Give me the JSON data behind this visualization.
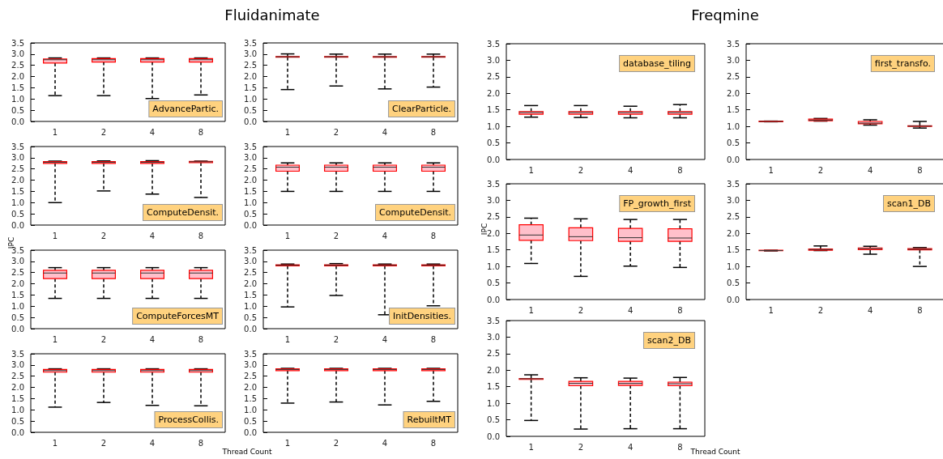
{
  "chart_data": [
    {
      "type": "box",
      "annotations": [
        "AdvancePartic."
      ],
      "categories": [
        "1",
        "2",
        "4",
        "8"
      ],
      "ylim": [
        0,
        3.5
      ],
      "yticks": [
        {
          "value": 0,
          "label": "0.0"
        },
        {
          "value": 0.5,
          "label": "0.5"
        },
        {
          "value": 1,
          "label": "1.0"
        },
        {
          "value": 1.5,
          "label": "1.5"
        },
        {
          "value": 2,
          "label": "2.0"
        },
        {
          "value": 2.5,
          "label": "2.5"
        },
        {
          "value": 3,
          "label": "3.0"
        },
        {
          "value": 3.5,
          "label": "3.5"
        }
      ],
      "series": [
        {
          "color": "#ffc0cb",
          "boxes": [
            {
              "low": 1.15,
              "q1": 2.6,
              "median": 2.75,
              "q3": 2.78,
              "high": 2.83
            },
            {
              "low": 1.15,
              "q1": 2.65,
              "median": 2.75,
              "q3": 2.8,
              "high": 2.83
            },
            {
              "low": 1.02,
              "q1": 2.65,
              "median": 2.75,
              "q3": 2.8,
              "high": 2.83
            },
            {
              "low": 1.18,
              "q1": 2.65,
              "median": 2.75,
              "q3": 2.8,
              "high": 2.83
            }
          ]
        }
      ]
    },
    {
      "type": "box",
      "title": "Fluidanimate",
      "annotations": [
        "ClearParticle."
      ],
      "categories": [
        "1",
        "2",
        "4",
        "8"
      ],
      "ylim": [
        0,
        3.5
      ],
      "yticks": [
        {
          "value": 0,
          "label": "0.0"
        },
        {
          "value": 0.5,
          "label": "0.5"
        },
        {
          "value": 1,
          "label": "1.0"
        },
        {
          "value": 1.5,
          "label": "1.5"
        },
        {
          "value": 2,
          "label": "2.0"
        },
        {
          "value": 2.5,
          "label": "2.5"
        },
        {
          "value": 3,
          "label": "3.0"
        },
        {
          "value": 3.5,
          "label": "3.5"
        }
      ],
      "series": [
        {
          "color": "#ffc0cb",
          "boxes": [
            {
              "low": 1.42,
              "q1": 2.86,
              "median": 2.88,
              "q3": 2.89,
              "high": 3.01
            },
            {
              "low": 1.58,
              "q1": 2.86,
              "median": 2.88,
              "q3": 2.89,
              "high": 3.0
            },
            {
              "low": 1.45,
              "q1": 2.86,
              "median": 2.88,
              "q3": 2.89,
              "high": 3.0
            },
            {
              "low": 1.53,
              "q1": 2.86,
              "median": 2.88,
              "q3": 2.89,
              "high": 3.0
            }
          ]
        }
      ]
    },
    {
      "type": "box",
      "ylabel": "IPC",
      "annotations": [
        "ComputeDensit."
      ],
      "categories": [
        "1",
        "2",
        "4",
        "8"
      ],
      "ylim": [
        0,
        3.5
      ],
      "yticks": [
        {
          "value": 0,
          "label": "0.0"
        },
        {
          "value": 0.5,
          "label": "0.5"
        },
        {
          "value": 1,
          "label": "1.0"
        },
        {
          "value": 1.5,
          "label": "1.5"
        },
        {
          "value": 2,
          "label": "2.0"
        },
        {
          "value": 2.5,
          "label": "2.5"
        },
        {
          "value": 3,
          "label": "3.0"
        },
        {
          "value": 3.5,
          "label": "3.5"
        }
      ],
      "series": [
        {
          "color": "#ffc0cb",
          "boxes": [
            {
              "low": 1.0,
              "q1": 2.75,
              "median": 2.8,
              "q3": 2.83,
              "high": 2.85
            },
            {
              "low": 1.52,
              "q1": 2.75,
              "median": 2.8,
              "q3": 2.83,
              "high": 2.86
            },
            {
              "low": 1.38,
              "q1": 2.75,
              "median": 2.8,
              "q3": 2.83,
              "high": 2.87
            },
            {
              "low": 1.23,
              "q1": 2.78,
              "median": 2.82,
              "q3": 2.84,
              "high": 2.85
            }
          ]
        }
      ]
    },
    {
      "type": "box",
      "annotations": [
        "ComputeDensit."
      ],
      "categories": [
        "1",
        "2",
        "4",
        "8"
      ],
      "ylim": [
        0,
        3.5
      ],
      "yticks": [
        {
          "value": 0,
          "label": "0.0"
        },
        {
          "value": 0.5,
          "label": "0.5"
        },
        {
          "value": 1,
          "label": "1.0"
        },
        {
          "value": 1.5,
          "label": "1.5"
        },
        {
          "value": 2,
          "label": "2.0"
        },
        {
          "value": 2.5,
          "label": "2.5"
        },
        {
          "value": 3,
          "label": "3.0"
        },
        {
          "value": 3.5,
          "label": "3.5"
        }
      ],
      "series": [
        {
          "color": "#ffc0cb",
          "boxes": [
            {
              "low": 1.5,
              "q1": 2.4,
              "median": 2.58,
              "q3": 2.67,
              "high": 2.77
            },
            {
              "low": 1.5,
              "q1": 2.4,
              "median": 2.58,
              "q3": 2.67,
              "high": 2.77
            },
            {
              "low": 1.5,
              "q1": 2.4,
              "median": 2.58,
              "q3": 2.67,
              "high": 2.77
            },
            {
              "low": 1.5,
              "q1": 2.4,
              "median": 2.58,
              "q3": 2.67,
              "high": 2.77
            }
          ]
        }
      ]
    },
    {
      "type": "box",
      "annotations": [
        "ComputeForcesMT"
      ],
      "categories": [
        "1",
        "2",
        "4",
        "8"
      ],
      "ylim": [
        0,
        3.5
      ],
      "yticks": [
        {
          "value": 0,
          "label": "0.0"
        },
        {
          "value": 0.5,
          "label": "0.5"
        },
        {
          "value": 1,
          "label": "1.0"
        },
        {
          "value": 1.5,
          "label": "1.5"
        },
        {
          "value": 2,
          "label": "2.0"
        },
        {
          "value": 2.5,
          "label": "2.5"
        },
        {
          "value": 3,
          "label": "3.0"
        },
        {
          "value": 3.5,
          "label": "3.5"
        }
      ],
      "series": [
        {
          "color": "#ffc0cb",
          "boxes": [
            {
              "low": 1.35,
              "q1": 2.23,
              "median": 2.48,
              "q3": 2.6,
              "high": 2.72
            },
            {
              "low": 1.35,
              "q1": 2.23,
              "median": 2.48,
              "q3": 2.6,
              "high": 2.72
            },
            {
              "low": 1.35,
              "q1": 2.23,
              "median": 2.48,
              "q3": 2.6,
              "high": 2.72
            },
            {
              "low": 1.35,
              "q1": 2.23,
              "median": 2.48,
              "q3": 2.6,
              "high": 2.72
            }
          ]
        }
      ]
    },
    {
      "type": "box",
      "annotations": [
        "InitDensities."
      ],
      "categories": [
        "1",
        "2",
        "4",
        "8"
      ],
      "ylim": [
        0,
        3.5
      ],
      "yticks": [
        {
          "value": 0,
          "label": "0.0"
        },
        {
          "value": 0.5,
          "label": "0.5"
        },
        {
          "value": 1,
          "label": "1.0"
        },
        {
          "value": 1.5,
          "label": "1.5"
        },
        {
          "value": 2,
          "label": "2.0"
        },
        {
          "value": 2.5,
          "label": "2.5"
        },
        {
          "value": 3,
          "label": "3.0"
        },
        {
          "value": 3.5,
          "label": "3.5"
        }
      ],
      "series": [
        {
          "color": "#ffc0cb",
          "boxes": [
            {
              "low": 0.97,
              "q1": 2.8,
              "median": 2.83,
              "q3": 2.85,
              "high": 2.88
            },
            {
              "low": 1.48,
              "q1": 2.8,
              "median": 2.83,
              "q3": 2.85,
              "high": 2.9
            },
            {
              "low": 0.62,
              "q1": 2.8,
              "median": 2.83,
              "q3": 2.85,
              "high": 2.88
            },
            {
              "low": 1.02,
              "q1": 2.8,
              "median": 2.83,
              "q3": 2.85,
              "high": 2.88
            }
          ]
        }
      ]
    },
    {
      "type": "box",
      "xlabel": "Thread Count",
      "annotations": [
        "ProcessCollis."
      ],
      "categories": [
        "1",
        "2",
        "4",
        "8"
      ],
      "ylim": [
        0,
        3.5
      ],
      "yticks": [
        {
          "value": 0,
          "label": "0.0"
        },
        {
          "value": 0.5,
          "label": "0.5"
        },
        {
          "value": 1,
          "label": "1.0"
        },
        {
          "value": 1.5,
          "label": "1.5"
        },
        {
          "value": 2,
          "label": "2.0"
        },
        {
          "value": 2.5,
          "label": "2.5"
        },
        {
          "value": 3,
          "label": "3.0"
        },
        {
          "value": 3.5,
          "label": "3.5"
        }
      ],
      "series": [
        {
          "color": "#ffc0cb",
          "boxes": [
            {
              "low": 1.12,
              "q1": 2.68,
              "median": 2.75,
              "q3": 2.8,
              "high": 2.83
            },
            {
              "low": 1.33,
              "q1": 2.68,
              "median": 2.75,
              "q3": 2.8,
              "high": 2.83
            },
            {
              "low": 1.2,
              "q1": 2.68,
              "median": 2.75,
              "q3": 2.8,
              "high": 2.83
            },
            {
              "low": 1.18,
              "q1": 2.68,
              "median": 2.75,
              "q3": 2.8,
              "high": 2.83
            }
          ]
        }
      ]
    },
    {
      "type": "box",
      "annotations": [
        "RebuiltMT"
      ],
      "categories": [
        "1",
        "2",
        "4",
        "8"
      ],
      "ylim": [
        0,
        3.5
      ],
      "yticks": [
        {
          "value": 0,
          "label": "0.0"
        },
        {
          "value": 0.5,
          "label": "0.5"
        },
        {
          "value": 1,
          "label": "1.0"
        },
        {
          "value": 1.5,
          "label": "1.5"
        },
        {
          "value": 2,
          "label": "2.0"
        },
        {
          "value": 2.5,
          "label": "2.5"
        },
        {
          "value": 3,
          "label": "3.0"
        },
        {
          "value": 3.5,
          "label": "3.5"
        }
      ],
      "series": [
        {
          "color": "#ffc0cb",
          "boxes": [
            {
              "low": 1.3,
              "q1": 2.75,
              "median": 2.8,
              "q3": 2.83,
              "high": 2.85
            },
            {
              "low": 1.35,
              "q1": 2.75,
              "median": 2.8,
              "q3": 2.83,
              "high": 2.85
            },
            {
              "low": 1.22,
              "q1": 2.75,
              "median": 2.8,
              "q3": 2.83,
              "high": 2.85
            },
            {
              "low": 1.38,
              "q1": 2.75,
              "median": 2.8,
              "q3": 2.83,
              "high": 2.85
            }
          ]
        }
      ]
    },
    {
      "type": "box",
      "title": "Freqmine",
      "annotations": [
        "database_tiling"
      ],
      "categories": [
        "1",
        "2",
        "4",
        "8"
      ],
      "ylim": [
        0,
        3.5
      ],
      "yticks": [
        {
          "value": 0,
          "label": "0.0"
        },
        {
          "value": 0.5,
          "label": "0.5"
        },
        {
          "value": 1,
          "label": "1.0"
        },
        {
          "value": 1.5,
          "label": "1.5"
        },
        {
          "value": 2,
          "label": "2.0"
        },
        {
          "value": 2.5,
          "label": "2.5"
        },
        {
          "value": 3,
          "label": "3.0"
        },
        {
          "value": 3.5,
          "label": "3.5"
        }
      ],
      "series": [
        {
          "color": "#ffc0cb",
          "boxes": [
            {
              "low": 1.28,
              "q1": 1.37,
              "median": 1.42,
              "q3": 1.45,
              "high": 1.63
            },
            {
              "low": 1.27,
              "q1": 1.37,
              "median": 1.42,
              "q3": 1.45,
              "high": 1.63
            },
            {
              "low": 1.26,
              "q1": 1.37,
              "median": 1.42,
              "q3": 1.45,
              "high": 1.61
            },
            {
              "low": 1.26,
              "q1": 1.37,
              "median": 1.42,
              "q3": 1.45,
              "high": 1.66
            }
          ]
        }
      ]
    },
    {
      "type": "box",
      "annotations": [
        "first_transfo."
      ],
      "categories": [
        "1",
        "2",
        "4",
        "8"
      ],
      "ylim": [
        0,
        3.5
      ],
      "yticks": [
        {
          "value": 0,
          "label": "0.0"
        },
        {
          "value": 0.5,
          "label": "0.5"
        },
        {
          "value": 1,
          "label": "1.0"
        },
        {
          "value": 1.5,
          "label": "1.5"
        },
        {
          "value": 2,
          "label": "2.0"
        },
        {
          "value": 2.5,
          "label": "2.5"
        },
        {
          "value": 3,
          "label": "3.0"
        },
        {
          "value": 3.5,
          "label": "3.5"
        }
      ],
      "series": [
        {
          "color": "#ffc0cb",
          "boxes": [
            {
              "low": 1.14,
              "q1": 1.14,
              "median": 1.15,
              "q3": 1.16,
              "high": 1.16
            },
            {
              "low": 1.16,
              "q1": 1.17,
              "median": 1.19,
              "q3": 1.22,
              "high": 1.24
            },
            {
              "low": 1.04,
              "q1": 1.08,
              "median": 1.1,
              "q3": 1.15,
              "high": 1.2
            },
            {
              "low": 0.95,
              "q1": 1.0,
              "median": 1.01,
              "q3": 1.02,
              "high": 1.15
            }
          ]
        }
      ]
    },
    {
      "type": "box",
      "ylabel": "IPC",
      "annotations": [
        "FP_growth_first"
      ],
      "categories": [
        "1",
        "2",
        "4",
        "8"
      ],
      "ylim": [
        0,
        3.5
      ],
      "yticks": [
        {
          "value": 0,
          "label": "0.0"
        },
        {
          "value": 0.5,
          "label": "0.5"
        },
        {
          "value": 1,
          "label": "1.0"
        },
        {
          "value": 1.5,
          "label": "1.5"
        },
        {
          "value": 2,
          "label": "2.0"
        },
        {
          "value": 2.5,
          "label": "2.5"
        },
        {
          "value": 3,
          "label": "3.0"
        },
        {
          "value": 3.5,
          "label": "3.5"
        }
      ],
      "series": [
        {
          "color": "#ffc0cb",
          "boxes": [
            {
              "low": 1.09,
              "q1": 1.79,
              "median": 1.95,
              "q3": 2.26,
              "high": 2.46
            },
            {
              "low": 0.7,
              "q1": 1.78,
              "median": 1.9,
              "q3": 2.17,
              "high": 2.44
            },
            {
              "low": 1.01,
              "q1": 1.76,
              "median": 1.87,
              "q3": 2.15,
              "high": 2.42
            },
            {
              "low": 0.97,
              "q1": 1.76,
              "median": 1.86,
              "q3": 2.14,
              "high": 2.42
            }
          ]
        }
      ]
    },
    {
      "type": "box",
      "annotations": [
        "scan1_DB"
      ],
      "categories": [
        "1",
        "2",
        "4",
        "8"
      ],
      "ylim": [
        0,
        3.5
      ],
      "yticks": [
        {
          "value": 0,
          "label": "0.0"
        },
        {
          "value": 0.5,
          "label": "0.5"
        },
        {
          "value": 1,
          "label": "1.0"
        },
        {
          "value": 1.5,
          "label": "1.5"
        },
        {
          "value": 2,
          "label": "2.0"
        },
        {
          "value": 2.5,
          "label": "2.5"
        },
        {
          "value": 3,
          "label": "3.0"
        },
        {
          "value": 3.5,
          "label": "3.5"
        }
      ],
      "series": [
        {
          "color": "#ffc0cb",
          "boxes": [
            {
              "low": 1.47,
              "q1": 1.48,
              "median": 1.48,
              "q3": 1.49,
              "high": 1.49
            },
            {
              "low": 1.48,
              "q1": 1.49,
              "median": 1.51,
              "q3": 1.53,
              "high": 1.62
            },
            {
              "low": 1.37,
              "q1": 1.51,
              "median": 1.54,
              "q3": 1.56,
              "high": 1.61
            },
            {
              "low": 1.0,
              "q1": 1.5,
              "median": 1.52,
              "q3": 1.54,
              "high": 1.57
            }
          ]
        }
      ]
    },
    {
      "type": "box",
      "xlabel": "Thread Count",
      "annotations": [
        "scan2_DB"
      ],
      "categories": [
        "1",
        "2",
        "4",
        "8"
      ],
      "ylim": [
        0,
        3.5
      ],
      "yticks": [
        {
          "value": 0,
          "label": "0.0"
        },
        {
          "value": 0.5,
          "label": "0.5"
        },
        {
          "value": 1,
          "label": "1.0"
        },
        {
          "value": 1.5,
          "label": "1.5"
        },
        {
          "value": 2,
          "label": "2.0"
        },
        {
          "value": 2.5,
          "label": "2.5"
        },
        {
          "value": 3,
          "label": "3.0"
        },
        {
          "value": 3.5,
          "label": "3.5"
        }
      ],
      "series": [
        {
          "color": "#ffc0cb",
          "boxes": [
            {
              "low": 0.48,
              "q1": 1.72,
              "median": 1.74,
              "q3": 1.75,
              "high": 1.86
            },
            {
              "low": 0.22,
              "q1": 1.53,
              "median": 1.6,
              "q3": 1.66,
              "high": 1.77
            },
            {
              "low": 0.23,
              "q1": 1.54,
              "median": 1.6,
              "q3": 1.66,
              "high": 1.76
            },
            {
              "low": 0.23,
              "q1": 1.53,
              "median": 1.59,
              "q3": 1.64,
              "high": 1.78
            }
          ]
        }
      ]
    }
  ]
}
